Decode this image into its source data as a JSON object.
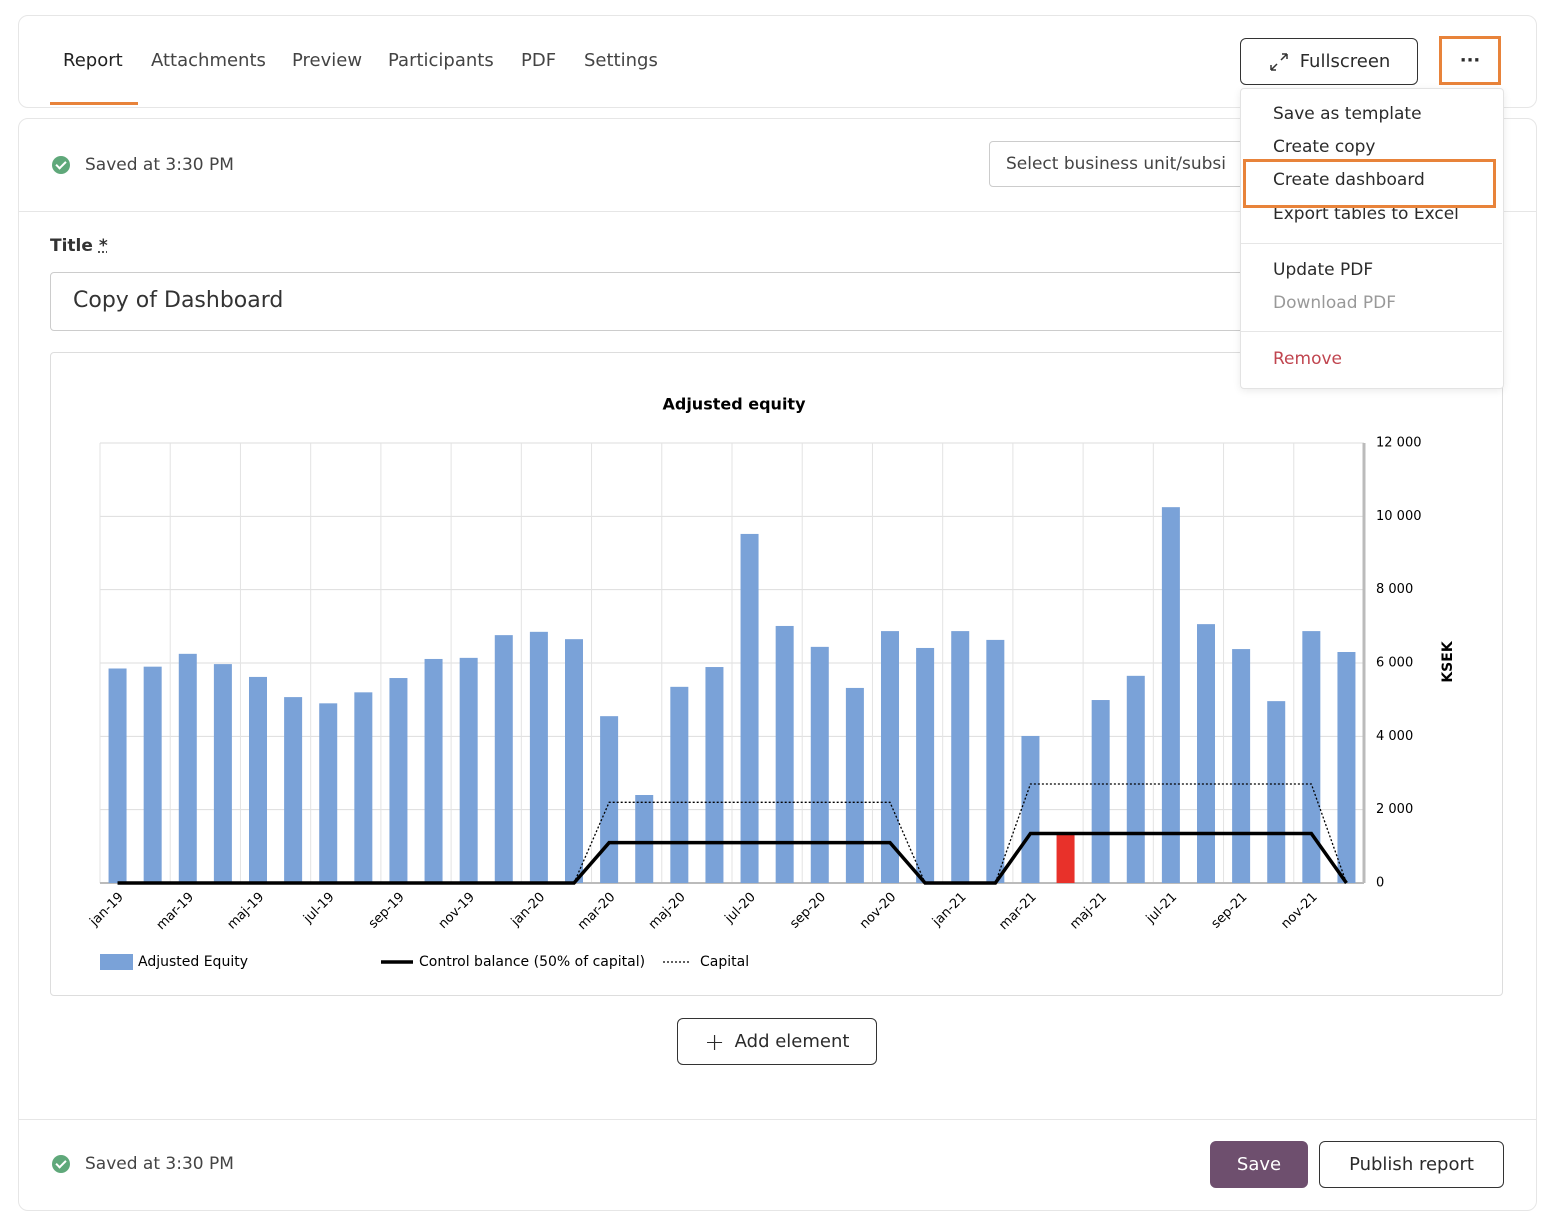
{
  "tabs": [
    "Report",
    "Attachments",
    "Preview",
    "Participants",
    "PDF",
    "Settings"
  ],
  "fullscreen_button": "Fullscreen",
  "more_button": "···",
  "menu": {
    "group1": [
      "Save as template",
      "Create copy",
      "Create dashboard",
      "Export tables to Excel"
    ],
    "group2": [
      "Update PDF",
      "Download PDF"
    ],
    "group3": [
      "Remove"
    ]
  },
  "status_top": "Saved at 3:30 PM",
  "select_placeholder": "Select business unit/subsi",
  "title_label": "Title",
  "required_mark": "*",
  "title_value": "Copy of Dashboard",
  "add_element": "Add element",
  "status_bottom": "Saved at 3:30 PM",
  "save_button": "Save",
  "publish_button": "Publish report",
  "chart_data": {
    "type": "bar",
    "title": "Adjusted equity",
    "y_axis_label": "KSEK",
    "categories": [
      "jan-19",
      null,
      "mar-19",
      null,
      "maj-19",
      null,
      "jul-19",
      null,
      "sep-19",
      null,
      "nov-19",
      null,
      "jan-20",
      null,
      "mar-20",
      null,
      "maj-20",
      null,
      "jul-20",
      null,
      "sep-20",
      null,
      "nov-20",
      null,
      "jan-21",
      null,
      "mar-21",
      null,
      "maj-21",
      null,
      "jul-21",
      null,
      "sep-21",
      null,
      "nov-21",
      null
    ],
    "series": [
      {
        "name": "Adjusted Equity",
        "type": "bar",
        "color": "#7aa2d8",
        "values": [
          5850,
          5900,
          6250,
          5970,
          5620,
          5070,
          4900,
          5200,
          5590,
          6110,
          6140,
          6760,
          6850,
          6650,
          4550,
          2400,
          5350,
          5890,
          9520,
          7010,
          6440,
          5320,
          6870,
          6410,
          6870,
          6630,
          4010,
          1340,
          4990,
          5650,
          10250,
          7060,
          6380,
          4960,
          6870,
          6300
        ],
        "point_colors": [
          "#7aa2d8",
          "#7aa2d8",
          "#7aa2d8",
          "#7aa2d8",
          "#7aa2d8",
          "#7aa2d8",
          "#7aa2d8",
          "#7aa2d8",
          "#7aa2d8",
          "#7aa2d8",
          "#7aa2d8",
          "#7aa2d8",
          "#7aa2d8",
          "#7aa2d8",
          "#7aa2d8",
          "#7aa2d8",
          "#7aa2d8",
          "#7aa2d8",
          "#7aa2d8",
          "#7aa2d8",
          "#7aa2d8",
          "#7aa2d8",
          "#7aa2d8",
          "#7aa2d8",
          "#7aa2d8",
          "#7aa2d8",
          "#7aa2d8",
          "#e8312a",
          "#7aa2d8",
          "#7aa2d8",
          "#7aa2d8",
          "#7aa2d8",
          "#7aa2d8",
          "#7aa2d8",
          "#7aa2d8",
          "#7aa2d8"
        ]
      },
      {
        "name": "Control balance (50% of capital)",
        "type": "line",
        "color": "#000000",
        "dash": "solid",
        "values": [
          0,
          0,
          0,
          0,
          0,
          0,
          0,
          0,
          0,
          0,
          0,
          0,
          0,
          0,
          1100,
          1100,
          1100,
          1100,
          1100,
          1100,
          1100,
          1100,
          1100,
          0,
          0,
          0,
          1350,
          1350,
          1350,
          1350,
          1350,
          1350,
          1350,
          1350,
          1350,
          0
        ]
      },
      {
        "name": "Capital",
        "type": "line",
        "color": "#000000",
        "dash": "dotted",
        "values": [
          0,
          0,
          0,
          0,
          0,
          0,
          0,
          0,
          0,
          0,
          0,
          0,
          0,
          0,
          2200,
          2200,
          2200,
          2200,
          2200,
          2200,
          2200,
          2200,
          2200,
          0,
          0,
          0,
          2700,
          2700,
          2700,
          2700,
          2700,
          2700,
          2700,
          2700,
          2700,
          0
        ]
      }
    ],
    "ylim": [
      0,
      12000
    ],
    "yticks": [
      0,
      {
        "value": 2000,
        "label": "2 000"
      },
      {
        "value": 4000,
        "label": "4 000"
      },
      {
        "value": 6000,
        "label": "6 000"
      },
      {
        "value": 8000,
        "label": "8 000"
      },
      {
        "value": 10000,
        "label": "10 000"
      },
      {
        "value": 12000,
        "label": "12 000"
      }
    ],
    "y_axis_side": "right",
    "grid": true,
    "legend": "bottom"
  }
}
